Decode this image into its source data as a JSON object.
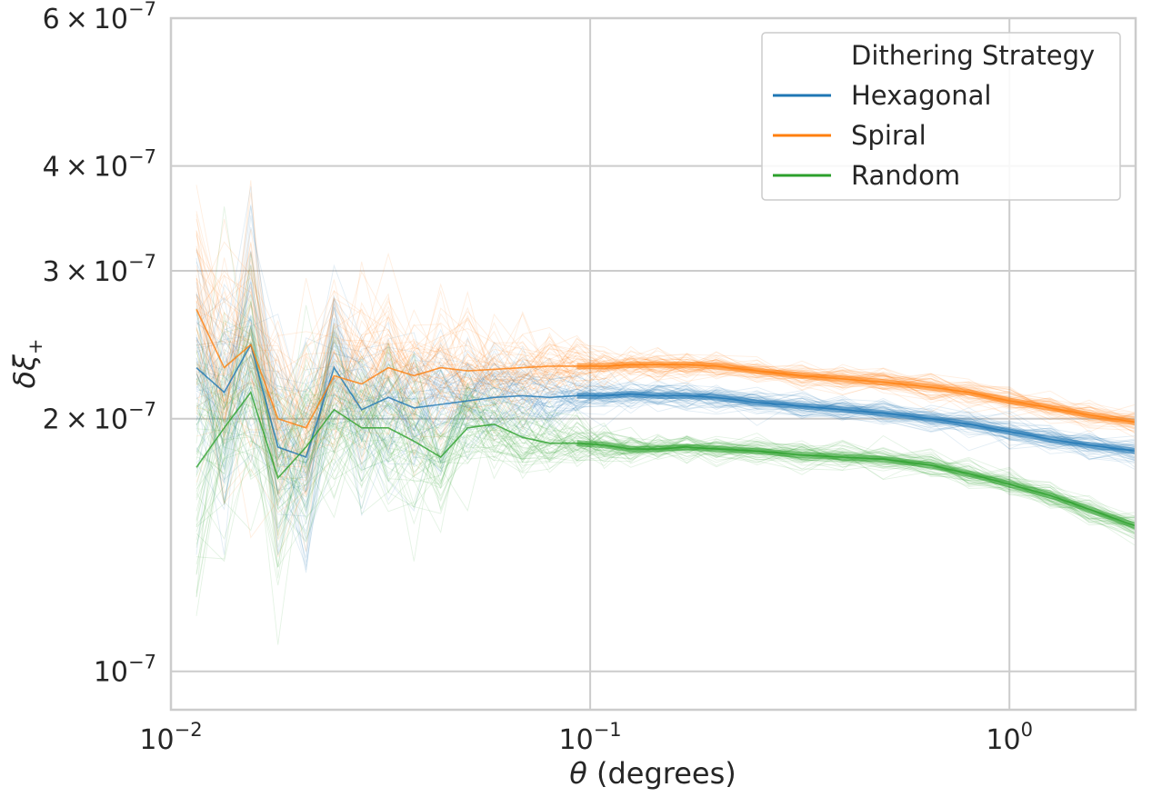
{
  "chart_data": {
    "type": "line",
    "title": "",
    "xlabel": "(degrees)",
    "xlabel_symbol": "θ",
    "ylabel_symbol": "δξ",
    "ylabel_subscript": "+",
    "xscale": "log",
    "yscale": "log",
    "xlim": [
      0.01,
      2.0
    ],
    "ylim": [
      9e-08,
      6e-07
    ],
    "grid": true,
    "x_ticks": [
      {
        "value": 0.01,
        "base": "10",
        "exp": "−2"
      },
      {
        "value": 0.1,
        "base": "10",
        "exp": "−1"
      },
      {
        "value": 1.0,
        "base": "10",
        "exp": "0"
      }
    ],
    "y_ticks": [
      {
        "value": 1e-07,
        "mant": "",
        "base": "10",
        "exp": "−7"
      },
      {
        "value": 2e-07,
        "mant": "2",
        "base": "10",
        "exp": "−7"
      },
      {
        "value": 3e-07,
        "mant": "3",
        "base": "10",
        "exp": "−7"
      },
      {
        "value": 4e-07,
        "mant": "4",
        "base": "10",
        "exp": "−7"
      },
      {
        "value": 6e-07,
        "mant": "6",
        "base": "10",
        "exp": "−7"
      }
    ],
    "legend": {
      "title": "Dithering Strategy",
      "position": "top-right"
    },
    "x": [
      0.0115,
      0.0134,
      0.0155,
      0.018,
      0.021,
      0.0245,
      0.0285,
      0.033,
      0.038,
      0.044,
      0.051,
      0.059,
      0.069,
      0.08,
      0.093,
      0.108,
      0.125,
      0.145,
      0.17,
      0.2,
      0.25,
      0.32,
      0.4,
      0.5,
      0.65,
      0.8,
      1.0,
      1.25,
      1.55,
      2.0
    ],
    "series": [
      {
        "name": "Hexagonal",
        "color": "#1f77b4",
        "values": [
          2.3e-07,
          2.15e-07,
          2.45e-07,
          1.85e-07,
          1.8e-07,
          2.3e-07,
          2.05e-07,
          2.12e-07,
          2.06e-07,
          2.08e-07,
          2.1e-07,
          2.12e-07,
          2.13e-07,
          2.12e-07,
          2.13e-07,
          2.13e-07,
          2.14e-07,
          2.13e-07,
          2.13e-07,
          2.12e-07,
          2.09e-07,
          2.07e-07,
          2.05e-07,
          2.03e-07,
          2e-07,
          1.97e-07,
          1.93e-07,
          1.89e-07,
          1.86e-07,
          1.83e-07
        ]
      },
      {
        "name": "Spiral",
        "color": "#ff7f0e",
        "values": [
          2.7e-07,
          2.3e-07,
          2.45e-07,
          2e-07,
          1.95e-07,
          2.25e-07,
          2.2e-07,
          2.3e-07,
          2.25e-07,
          2.3e-07,
          2.28e-07,
          2.29e-07,
          2.3e-07,
          2.31e-07,
          2.31e-07,
          2.31e-07,
          2.32e-07,
          2.32e-07,
          2.32e-07,
          2.31e-07,
          2.28e-07,
          2.25e-07,
          2.23e-07,
          2.21e-07,
          2.18e-07,
          2.15e-07,
          2.1e-07,
          2.06e-07,
          2.02e-07,
          1.98e-07
        ]
      },
      {
        "name": "Random",
        "color": "#2ca02c",
        "values": [
          1.75e-07,
          1.95e-07,
          2.15e-07,
          1.7e-07,
          1.85e-07,
          2.05e-07,
          1.95e-07,
          1.95e-07,
          1.88e-07,
          1.8e-07,
          1.95e-07,
          1.97e-07,
          1.9e-07,
          1.87e-07,
          1.87e-07,
          1.86e-07,
          1.84e-07,
          1.84e-07,
          1.85e-07,
          1.84e-07,
          1.83e-07,
          1.81e-07,
          1.8e-07,
          1.79e-07,
          1.76e-07,
          1.72e-07,
          1.67e-07,
          1.62e-07,
          1.56e-07,
          1.49e-07
        ]
      }
    ],
    "noise": {
      "realizations": 60,
      "scatter_small_scale": 0.18,
      "scatter_large_scale": 0.006
    }
  }
}
